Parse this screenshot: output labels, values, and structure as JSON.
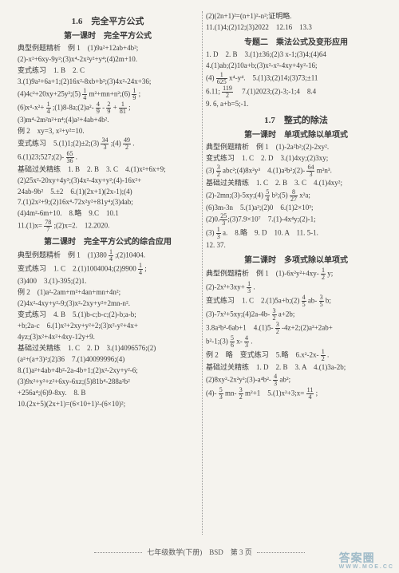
{
  "col1": {
    "title": "1.6　完全平方公式",
    "sub1": "第一课时　完全平方公式",
    "l1": "典型例题精析　例 1　(1)9a²+12ab+4b²;",
    "l2": "(2)-x²+6xy-9y²;(3)x⁴-2x²y²+y⁴;(4)2m+10.",
    "l3": "变式练习　1. B　2. C",
    "l4": "3.(1)9a²+6a+1;(2)16x²-8xb+b²;(3)4x²-24x+36;",
    "l5": "(4)4c²+20xy+25y²;(5) 1/4 m²+mn+n²;(6) 1/9 ;",
    "l6": "(6)x⁴-x²+ 1/4 ;(1)8-8a;(2)a²- 4/9 - 2/9 + 1/81 ;",
    "l7": "(3)m⁴-2m²n²+n⁴;(4)a²+4ab+4b².",
    "l8": "例 2　xy=3, x²+y²=10.",
    "l9": "变式练习　5.(1)1;(2)±2;(3) 34/3 ;(4) 49/2 .",
    "l10": "6.(1)23;527;(2)- 65/36 .",
    "l11": "基础过关精练　1. B　2. B　3. C　4.(1)x²+6x+9;",
    "l12": "(2)25x²-20xy+4y²;(3)4x²-4xy+y²;(4)-16x²+",
    "l13": "24ab-9b²　5.±2　6.(1)(2x+1)(2x-1);(4)",
    "l14": "7.(1)2x²+9;(2)16x⁴-72x²y²+81y⁴;(3)4ab;",
    "l15": "(4)4m²-6m+10.　8.略　9.C　10.1",
    "l16": "11.(1)x= 78/7 ;(2)x=2.　12.2020.",
    "sub2": "第二课时　完全平方公式的综合应用",
    "l17": "典型例题精析　例 1　(1)380 1/4 ;(2)10404.",
    "l18": "变式练习　1. C　2.(1)1004004;(2)9900 1/4 ;",
    "l19": "(3)400　3.(1)-395;(2)1.",
    "l20": "例 2　(1)a²-2am+m²+4an+mn+4n²;",
    "l21": "(2)4x²-4xy+y²-9;(3)x²-2xy+y²+2mn-n².",
    "l22": "变式练习　4. B　5.(1)b-c;b-c;(2)-b;a-b;",
    "l23": "+b;2a-c　6.(1)x²+2xy+y²+2;(3)x²-y²+4x+",
    "l24": "4yz;(3)x²+4x²+4xy-12y+9.",
    "l25": "基础过关精练　1. C　2. D　3.(1)4096576;(2)",
    "l26": "(a²+(a+3)²;(2)36　7.(1)40099996;(4)",
    "l27": "8.(1)a²+4ab+4b²-2a-4b+1;(2)x²-2xy+y²-6;",
    "l28": "(3)9x²+y²+z²+6xy-6xz;(5)81b⁴-288a²b²",
    "l29": "+256a⁴;(6)9-8xy.　8. B",
    "l30": "10.(2x+5)(2x+1)=(6×10+1)²-(6×10)²;",
    "l31": "(2)(2n+1)²=(n+1)²-n²;证明略.",
    "space": " "
  },
  "col2": {
    "l1": "11.(1)4;(2)12;(3)2022　12.16　13.3",
    "t1": "专题二　乘法公式及变形应用",
    "l2": "1. D　2. B　3.(1)±36;(2)3 x-1;(3)4;(4)64",
    "l3": "4.(1)ab;(2)10a+b;(3)x²-x²-4xy+4y²-16;",
    "l4": "(4) 1/625 x⁴-y⁴.　5.(1)3;(2)14;(3)73;±11",
    "l5": "6.11; 119/2 　7.(1)2023;(2)-3;-1;4　8.4",
    "l6": "9. 6, a+b=5;-1.",
    "t2": "1.7　整式的除法",
    "sub1": "第一课时　单项式除以单项式",
    "l7": "典型例题精析　例 1　(1)-2a²b²;(2)-2xy².",
    "l8": "变式练习　1. C　2. D　3.(1)4xy;(2)3xy;",
    "l9": "(3) 3/2 abc²;(4)8x²y³　4.(1)a²b²;(2)- 64/3 m²n³.",
    "l10": "基础过关精练　1. C　2. B　3. C　4.(1)4xy²;",
    "l11": "(2)-2mn;(3)-5xy;(4) 5/4 b²;(5) 8/27 x²a;",
    "l12": "(6)3m-3n　5.(1)a²;(2)0　6.(1)2×10³;",
    "l13": "(2)0.25/3;(3)7.9×10⁷　7.(1)-4x⁴y;(2)-1;",
    "l14": "(3) 1/3 a.　8.略　9. D　10. A　11. 5-1.",
    "l15": "12. 37.",
    "sub2": "第二课时　多项式除以单项式",
    "l16": "典型例题精析　例 1　(1)-6x²y²+4xy- 1/2 y;",
    "l17": "(2)-2x²+3xy+ 1/3 .",
    "l18": "变式练习　1. C　2.(1)5a+b;(2) 4/5 ab- 3/5 b;",
    "l19": "(3)-7x²+5xy;(4)2a-4b- 3/2 a+2b;",
    "l20": "3.8a²b²-6ab+1　4.(1)5- 3/2 -4z+2;(2)a²+2ab+",
    "l21": "b²-1;(3) 5/6 x- 4/3 .",
    "l22": "例 2　略　变式练习　5.略　6.x²-2x- 1/2 .",
    "l23": "基础过关精练　1. D　2. B　3. A　4.(1)3a-2b;",
    "l24": "(2)8xy²-2x²y²;(3)-a⁴b²- 4/3 ab²;",
    "l25": "(4)- 5/3 mn- 3/2 m²+1　5.(1)x²+3;x= 11/4 ;",
    "space": " "
  },
  "footer": "七年级数学(下册)　BSD　第 3 页",
  "watermark": {
    "main": "答案圈",
    "sub": "WWW.MOE.CC"
  }
}
